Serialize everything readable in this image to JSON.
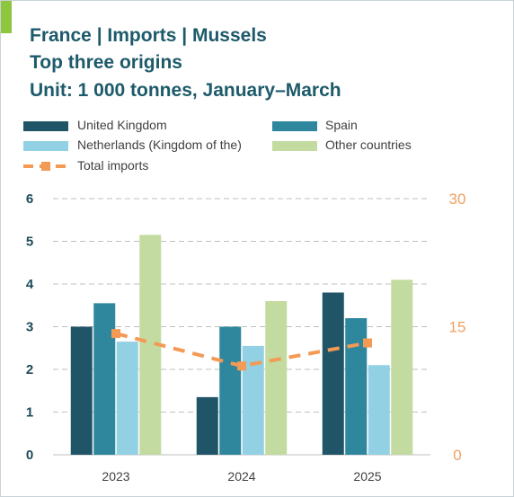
{
  "header": {
    "title_line1": "France | Imports | Mussels",
    "title_line2": "Top three origins",
    "title_line3": "Unit: 1 000 tonnes, January–March"
  },
  "colors": {
    "united_kingdom": "#1f5566",
    "spain": "#2f879e",
    "netherlands": "#92d0e3",
    "other": "#c3dba0",
    "total": "#f39a55",
    "accent": "#8dc63f",
    "title": "#1d5a6a"
  },
  "chart_data": {
    "type": "bar",
    "categories": [
      "2023",
      "2024",
      "2025"
    ],
    "series": [
      {
        "name": "United Kingdom",
        "values": [
          3.0,
          1.35,
          3.8
        ],
        "color": "#1f5566"
      },
      {
        "name": "Spain",
        "values": [
          3.55,
          3.0,
          3.2
        ],
        "color": "#2f879e"
      },
      {
        "name": "Netherlands (Kingdom of the)",
        "values": [
          2.65,
          2.55,
          2.1
        ],
        "color": "#92d0e3"
      },
      {
        "name": "Other countries",
        "values": [
          5.15,
          3.6,
          4.1
        ],
        "color": "#c3dba0"
      }
    ],
    "line_series": {
      "name": "Total imports",
      "values": [
        14.2,
        10.4,
        13.1
      ],
      "axis": "right",
      "color": "#f39a55"
    },
    "ylim": [
      0,
      6
    ],
    "y_ticks": [
      "0",
      "1",
      "2",
      "3",
      "4",
      "5",
      "6"
    ],
    "y2lim": [
      0,
      30
    ],
    "y2_ticks": [
      "0",
      "15",
      "30"
    ],
    "grid": true,
    "legend_position": "top"
  }
}
